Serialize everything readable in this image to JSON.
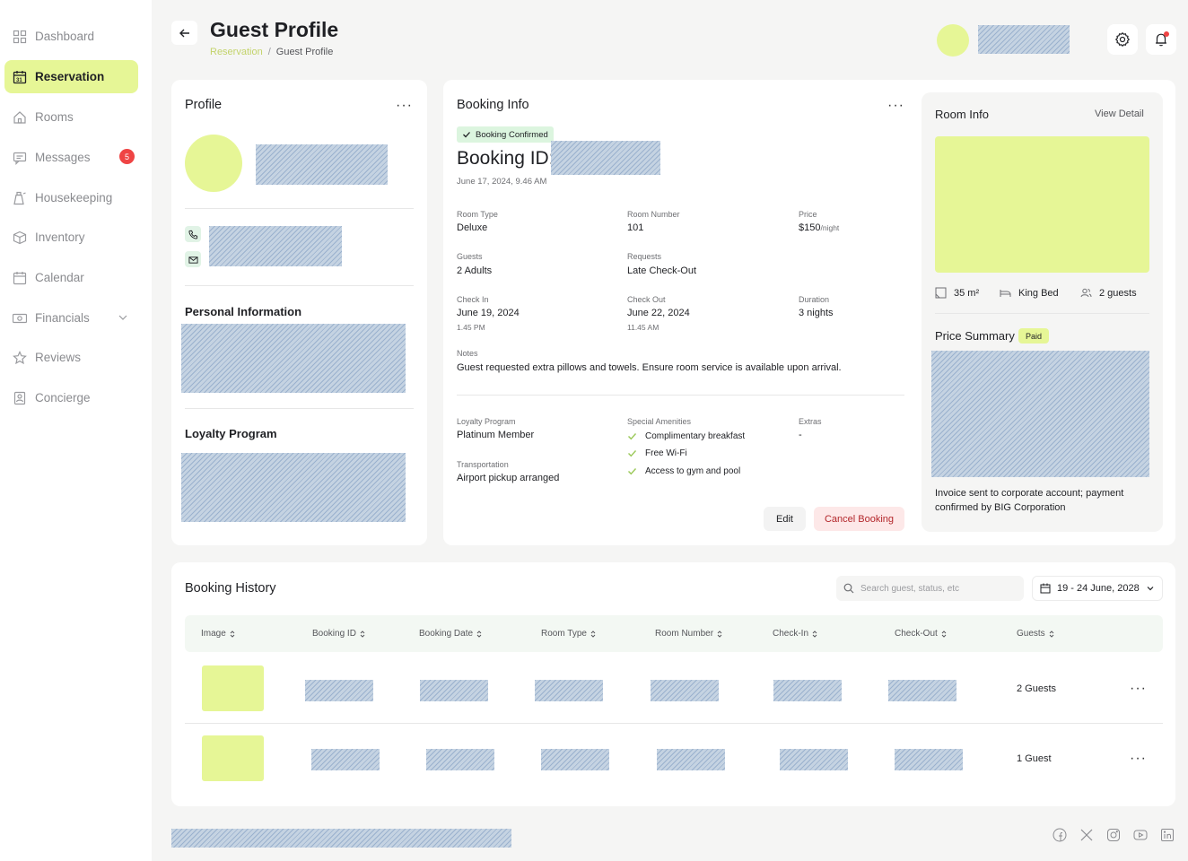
{
  "sidebar": {
    "items": [
      {
        "label": "Dashboard",
        "icon": "grid-icon"
      },
      {
        "label": "Reservation",
        "icon": "calendar-31-icon",
        "active": true
      },
      {
        "label": "Rooms",
        "icon": "home-icon"
      },
      {
        "label": "Messages",
        "icon": "message-icon",
        "badge": "5"
      },
      {
        "label": "Housekeeping",
        "icon": "cleaning-icon"
      },
      {
        "label": "Inventory",
        "icon": "box-icon"
      },
      {
        "label": "Calendar",
        "icon": "calendar-icon"
      },
      {
        "label": "Financials",
        "icon": "money-icon"
      },
      {
        "label": "Reviews",
        "icon": "star-icon"
      },
      {
        "label": "Concierge",
        "icon": "concierge-icon"
      }
    ]
  },
  "header": {
    "title": "Guest Profile",
    "breadcrumb": [
      "Reservation",
      "Guest Profile"
    ],
    "breadcrumb_sep": "/"
  },
  "profile": {
    "title": "Profile",
    "more": "···",
    "personal_info_title": "Personal Information",
    "loyalty_title": "Loyalty Program"
  },
  "booking": {
    "title": "Booking Info",
    "more": "···",
    "status": "Booking Confirmed",
    "id_label": "Booking ID:",
    "created": "June 17, 2024, 9.46 AM",
    "room_type_label": "Room Type",
    "room_type": "Deluxe",
    "room_number_label": "Room Number",
    "room_number": "101",
    "price_label": "Price",
    "price": "$150",
    "price_unit": "/night",
    "guests_label": "Guests",
    "guests": "2 Adults",
    "requests_label": "Requests",
    "requests": "Late Check-Out",
    "checkin_label": "Check In",
    "checkin_date": "June 19, 2024",
    "checkin_time": "1.45 PM",
    "checkout_label": "Check Out",
    "checkout_date": "June 22, 2024",
    "checkout_time": "11.45 AM",
    "duration_label": "Duration",
    "duration": "3 nights",
    "notes_label": "Notes",
    "notes": "Guest requested extra pillows and towels. Ensure room service is available upon arrival.",
    "loyalty_label": "Loyalty Program",
    "loyalty": "Platinum Member",
    "amenities_label": "Special Amenities",
    "amenities": [
      "Complimentary breakfast",
      "Free Wi-Fi",
      "Access to gym and pool"
    ],
    "extras_label": "Extras",
    "extras": "-",
    "transport_label": "Transportation",
    "transport": "Airport pickup arranged",
    "edit_label": "Edit",
    "cancel_label": "Cancel Booking"
  },
  "room": {
    "title": "Room Info",
    "view_detail": "View Detail",
    "size": "35 m²",
    "bed": "King Bed",
    "capacity": "2 guests",
    "price_summary_title": "Price Summary",
    "paid_badge": "Paid",
    "notes": "Invoice sent to corporate account; payment confirmed by BIG Corporation"
  },
  "history": {
    "title": "Booking History",
    "search_placeholder": "Search guest, status, etc",
    "date_range": "19 - 24 June, 2028",
    "columns": [
      "Image",
      "Booking ID",
      "Booking Date",
      "Room Type",
      "Room Number",
      "Check-In",
      "Check-Out",
      "Guests"
    ],
    "rows": [
      {
        "guests": "2 Guests",
        "more": "···"
      },
      {
        "guests": "1 Guest",
        "more": "···"
      }
    ]
  },
  "footer": {
    "socials": [
      "facebook-icon",
      "x-icon",
      "instagram-icon",
      "youtube-icon",
      "linkedin-icon"
    ]
  },
  "colors": {
    "accent": "#e6f696",
    "badge_red": "#ef4444",
    "confirmed_bg": "#dcf5df",
    "cancel_bg": "#fde8e8"
  }
}
